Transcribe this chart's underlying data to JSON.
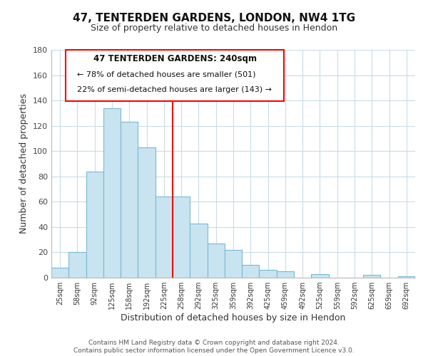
{
  "title": "47, TENTERDEN GARDENS, LONDON, NW4 1TG",
  "subtitle": "Size of property relative to detached houses in Hendon",
  "xlabel": "Distribution of detached houses by size in Hendon",
  "ylabel": "Number of detached properties",
  "footnote1": "Contains HM Land Registry data © Crown copyright and database right 2024.",
  "footnote2": "Contains public sector information licensed under the Open Government Licence v3.0.",
  "bar_labels": [
    "25sqm",
    "58sqm",
    "92sqm",
    "125sqm",
    "158sqm",
    "192sqm",
    "225sqm",
    "258sqm",
    "292sqm",
    "325sqm",
    "359sqm",
    "392sqm",
    "425sqm",
    "459sqm",
    "492sqm",
    "525sqm",
    "559sqm",
    "592sqm",
    "625sqm",
    "659sqm",
    "692sqm"
  ],
  "bar_values": [
    8,
    20,
    84,
    134,
    123,
    103,
    64,
    64,
    43,
    27,
    22,
    10,
    6,
    5,
    0,
    3,
    0,
    0,
    2,
    0,
    1
  ],
  "bar_color": "#c8e4f0",
  "bar_edge_color": "#7ab8d4",
  "ylim": [
    0,
    180
  ],
  "yticks": [
    0,
    20,
    40,
    60,
    80,
    100,
    120,
    140,
    160,
    180
  ],
  "redline_x": 6.5,
  "annotation_title": "47 TENTERDEN GARDENS: 240sqm",
  "annotation_line1": "← 78% of detached houses are smaller (501)",
  "annotation_line2": "22% of semi-detached houses are larger (143) →",
  "background_color": "#ffffff",
  "grid_color": "#c8dce8"
}
